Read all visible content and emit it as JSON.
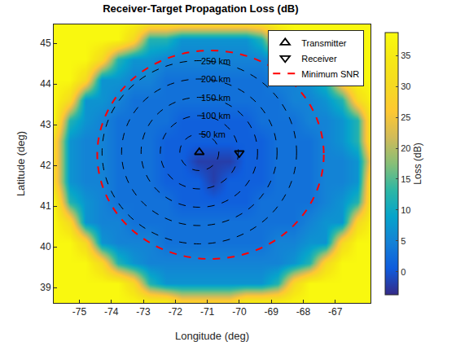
{
  "chart_data": {
    "type": "heatmap",
    "title": "Receiver-Target Propagation Loss (dB)",
    "x_label": "Longitude (deg)",
    "y_label": "Latitude (deg)",
    "xlim": [
      -75.8,
      -65.9
    ],
    "ylim": [
      38.62,
      45.46
    ],
    "xticks": [
      -75,
      -74,
      -73,
      -72,
      -71,
      -70,
      -69,
      -68,
      -67
    ],
    "yticks": [
      39,
      40,
      41,
      42,
      43,
      44,
      45
    ],
    "grid": false,
    "legend": "top right",
    "x": [
      -75.8,
      -75.3,
      -74.8,
      -74.3,
      -73.8,
      -73.3,
      -72.8,
      -72.3,
      -71.8,
      -71.3,
      -70.8,
      -70.3,
      -69.8,
      -69.3,
      -68.8,
      -68.3,
      -67.8,
      -67.3,
      -66.8,
      -66.3,
      -65.8
    ],
    "y": [
      38.6,
      39.1,
      39.6,
      40.1,
      40.6,
      41.1,
      41.6,
      42.1,
      42.6,
      43.1,
      43.6,
      44.1,
      44.6,
      45.1,
      45.6
    ],
    "z": [
      [
        38,
        38,
        38,
        38,
        38,
        38,
        38,
        38,
        30,
        30,
        30,
        30,
        38,
        38,
        38,
        38,
        38,
        38,
        38,
        38,
        38
      ],
      [
        38,
        38,
        38,
        38,
        38,
        30,
        12,
        7,
        7,
        7,
        7,
        7,
        7,
        7,
        12,
        30,
        38,
        38,
        38,
        38,
        38
      ],
      [
        38,
        38,
        38,
        30,
        12,
        7,
        5,
        5,
        5,
        5,
        5,
        5,
        5,
        5,
        5,
        7,
        12,
        30,
        38,
        38,
        38
      ],
      [
        38,
        38,
        30,
        7,
        5,
        5,
        5,
        3,
        3,
        3,
        3,
        3,
        3,
        3,
        5,
        5,
        7,
        7,
        30,
        38,
        38
      ],
      [
        38,
        30,
        7,
        5,
        5,
        3,
        3,
        3,
        3,
        3,
        3,
        3,
        3,
        3,
        3,
        3,
        5,
        7,
        7,
        30,
        38
      ],
      [
        38,
        12,
        7,
        5,
        3,
        3,
        3,
        3,
        1,
        1,
        1,
        1,
        1,
        3,
        3,
        3,
        3,
        5,
        7,
        12,
        38
      ],
      [
        30,
        7,
        5,
        5,
        3,
        3,
        3,
        1,
        1,
        1,
        -2,
        1,
        1,
        1,
        3,
        3,
        3,
        5,
        5,
        7,
        38
      ],
      [
        30,
        7,
        5,
        5,
        3,
        3,
        3,
        1,
        1,
        -2,
        -2,
        -2,
        1,
        1,
        3,
        3,
        3,
        5,
        5,
        7,
        30
      ],
      [
        30,
        7,
        5,
        5,
        3,
        3,
        3,
        1,
        1,
        1,
        1,
        1,
        1,
        1,
        3,
        3,
        3,
        5,
        7,
        12,
        38
      ],
      [
        38,
        12,
        7,
        5,
        3,
        3,
        3,
        3,
        1,
        1,
        1,
        1,
        1,
        3,
        3,
        3,
        5,
        5,
        7,
        12,
        38
      ],
      [
        38,
        30,
        7,
        7,
        5,
        3,
        3,
        3,
        3,
        3,
        3,
        3,
        3,
        3,
        3,
        5,
        5,
        7,
        12,
        30,
        38
      ],
      [
        38,
        38,
        30,
        7,
        7,
        5,
        5,
        3,
        3,
        3,
        3,
        3,
        3,
        3,
        5,
        5,
        7,
        12,
        30,
        38,
        38
      ],
      [
        38,
        38,
        38,
        30,
        12,
        7,
        7,
        5,
        5,
        5,
        5,
        5,
        5,
        5,
        7,
        7,
        12,
        38,
        38,
        38,
        38
      ],
      [
        38,
        38,
        38,
        38,
        38,
        30,
        12,
        12,
        7,
        7,
        7,
        7,
        7,
        12,
        30,
        38,
        38,
        38,
        38,
        38,
        38
      ],
      [
        38,
        38,
        38,
        38,
        38,
        38,
        38,
        38,
        38,
        38,
        38,
        38,
        38,
        38,
        38,
        38,
        38,
        38,
        38,
        38,
        38
      ]
    ],
    "colorbar": {
      "title": "Loss (dB)",
      "zlim": [
        -3.7,
        38.7
      ],
      "ticks": [
        0,
        5,
        10,
        15,
        20,
        25,
        30,
        35
      ]
    },
    "series": [
      {
        "name": "Transmitter",
        "type": "scatter",
        "marker": "triangle-up",
        "color": "#000000",
        "x": [
          -71.25
        ],
        "y": [
          42.32
        ]
      },
      {
        "name": "Receiver",
        "type": "scatter",
        "marker": "triangle-down",
        "color": "#000000",
        "x": [
          -70.0
        ],
        "y": [
          42.3
        ]
      },
      {
        "name": "Minimum SNR",
        "type": "ellipse",
        "color": "#ff0000",
        "line_style": "dash",
        "x0": -74.44,
        "x1": -67.36,
        "y0": 39.7,
        "y1": 44.82
      }
    ],
    "contours": [
      {
        "label": "50 km",
        "color": "#000000",
        "line_style": "dash",
        "x0": -71.86,
        "x1": -70.64,
        "y0": 41.87,
        "y1": 42.77
      },
      {
        "label": "100 km",
        "color": "#000000",
        "line_style": "dash",
        "x0": -72.47,
        "x1": -70.03,
        "y0": 41.42,
        "y1": 43.22
      },
      {
        "label": "150 km",
        "color": "#000000",
        "line_style": "dash",
        "x0": -73.07,
        "x1": -69.43,
        "y0": 40.97,
        "y1": 43.67
      },
      {
        "label": "200 km",
        "color": "#000000",
        "line_style": "dash",
        "x0": -73.68,
        "x1": -68.82,
        "y0": 40.52,
        "y1": 44.12
      },
      {
        "label": "250 km",
        "color": "#000000",
        "line_style": "dash",
        "x0": -74.29,
        "x1": -68.21,
        "y0": 40.07,
        "y1": 44.57
      }
    ]
  }
}
